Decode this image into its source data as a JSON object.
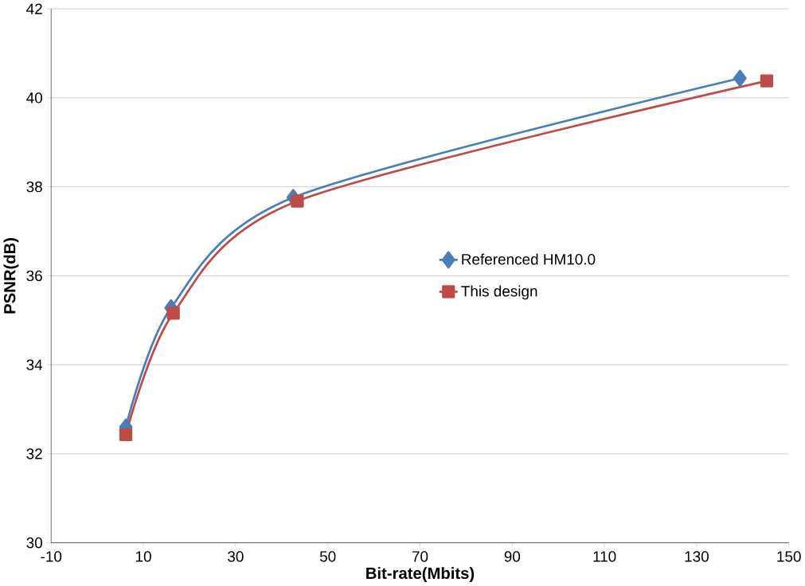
{
  "chart_data": {
    "type": "line",
    "xlabel": "Bit-rate(Mbits)",
    "ylabel": "PSNR(dB)",
    "x": [
      6.2,
      16,
      42.5,
      139.4
    ],
    "series": [
      {
        "name": "Referenced HM10.0",
        "color": "#4a7ebb",
        "marker": "diamond",
        "values": [
          32.6,
          35.28,
          37.76,
          40.44
        ]
      },
      {
        "name": "This design",
        "color": "#be4b48",
        "marker": "square",
        "x": [
          6.2,
          16.5,
          43.4,
          145.2
        ],
        "values": [
          32.43,
          35.16,
          37.68,
          40.38
        ]
      }
    ],
    "xlim": [
      -10,
      150
    ],
    "ylim": [
      30,
      42
    ],
    "xticks": [
      -10,
      10,
      30,
      50,
      70,
      90,
      110,
      130,
      150
    ],
    "yticks": [
      30,
      32,
      34,
      36,
      38,
      40,
      42
    ],
    "grid": "y",
    "legend": "right",
    "line_style": "solid"
  }
}
